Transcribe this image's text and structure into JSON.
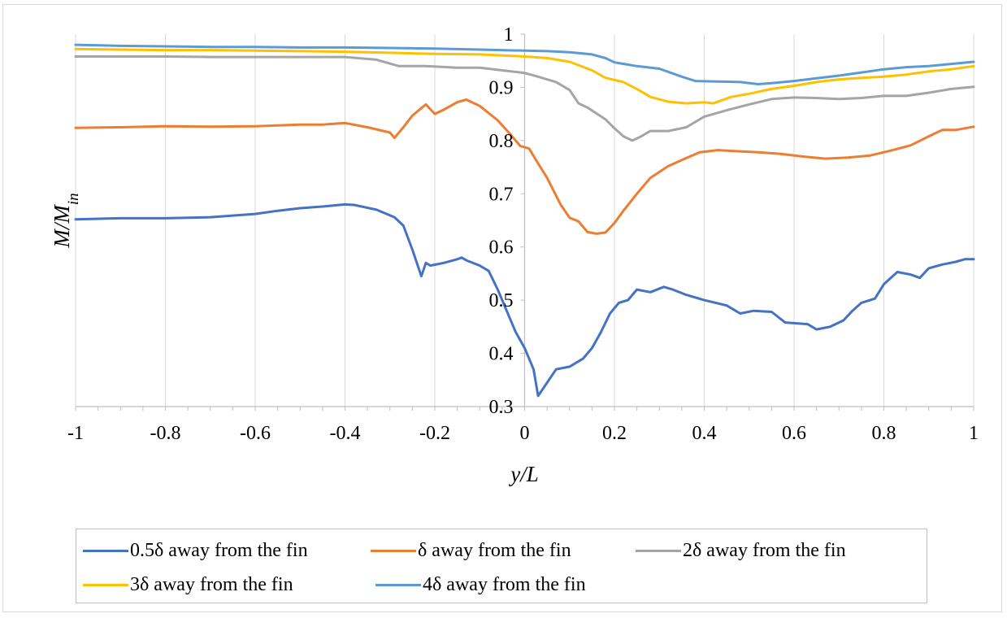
{
  "chart_data": {
    "type": "line",
    "xlabel": "y/L",
    "ylabel": "M/M",
    "ylabel_sub": "in",
    "xlim": [
      -1,
      1
    ],
    "ylim": [
      0.3,
      1
    ],
    "x_ticks": [
      -1,
      -0.8,
      -0.6,
      -0.4,
      -0.2,
      0,
      0.2,
      0.4,
      0.6,
      0.8,
      1
    ],
    "x_tick_labels": [
      "-1",
      "-0.8",
      "-0.6",
      "-0.4",
      "-0.2",
      "0",
      "0.2",
      "0.4",
      "0.6",
      "0.8",
      "1"
    ],
    "y_ticks": [
      0.3,
      0.4,
      0.5,
      0.6,
      0.7,
      0.8,
      0.9,
      1
    ],
    "y_tick_labels": [
      "0.3",
      "0.4",
      "0.5",
      "0.6",
      "0.7",
      "0.8",
      "0.9",
      "1"
    ],
    "grid": "vertical",
    "legend_position": "bottom",
    "series": [
      {
        "name": "0.5δ away from the fin",
        "color": "#4472C4",
        "points": [
          [
            -1,
            0.652
          ],
          [
            -0.9,
            0.654
          ],
          [
            -0.8,
            0.654
          ],
          [
            -0.7,
            0.656
          ],
          [
            -0.6,
            0.662
          ],
          [
            -0.55,
            0.668
          ],
          [
            -0.5,
            0.673
          ],
          [
            -0.45,
            0.676
          ],
          [
            -0.4,
            0.68
          ],
          [
            -0.38,
            0.679
          ],
          [
            -0.33,
            0.67
          ],
          [
            -0.29,
            0.656
          ],
          [
            -0.27,
            0.64
          ],
          [
            -0.25,
            0.595
          ],
          [
            -0.23,
            0.545
          ],
          [
            -0.22,
            0.57
          ],
          [
            -0.21,
            0.565
          ],
          [
            -0.18,
            0.57
          ],
          [
            -0.15,
            0.577
          ],
          [
            -0.14,
            0.58
          ],
          [
            -0.13,
            0.575
          ],
          [
            -0.1,
            0.565
          ],
          [
            -0.08,
            0.555
          ],
          [
            -0.06,
            0.52
          ],
          [
            -0.04,
            0.48
          ],
          [
            -0.02,
            0.44
          ],
          [
            0,
            0.41
          ],
          [
            0.02,
            0.37
          ],
          [
            0.03,
            0.32
          ],
          [
            0.05,
            0.345
          ],
          [
            0.07,
            0.37
          ],
          [
            0.1,
            0.375
          ],
          [
            0.13,
            0.39
          ],
          [
            0.15,
            0.41
          ],
          [
            0.17,
            0.44
          ],
          [
            0.19,
            0.475
          ],
          [
            0.21,
            0.495
          ],
          [
            0.23,
            0.5
          ],
          [
            0.25,
            0.52
          ],
          [
            0.28,
            0.515
          ],
          [
            0.31,
            0.525
          ],
          [
            0.33,
            0.52
          ],
          [
            0.36,
            0.51
          ],
          [
            0.4,
            0.5
          ],
          [
            0.45,
            0.49
          ],
          [
            0.48,
            0.475
          ],
          [
            0.51,
            0.48
          ],
          [
            0.55,
            0.478
          ],
          [
            0.58,
            0.458
          ],
          [
            0.63,
            0.455
          ],
          [
            0.65,
            0.445
          ],
          [
            0.68,
            0.45
          ],
          [
            0.71,
            0.462
          ],
          [
            0.73,
            0.48
          ],
          [
            0.75,
            0.495
          ],
          [
            0.78,
            0.503
          ],
          [
            0.8,
            0.53
          ],
          [
            0.83,
            0.553
          ],
          [
            0.86,
            0.548
          ],
          [
            0.88,
            0.542
          ],
          [
            0.9,
            0.56
          ],
          [
            0.93,
            0.567
          ],
          [
            0.96,
            0.572
          ],
          [
            0.98,
            0.577
          ],
          [
            1,
            0.577
          ]
        ]
      },
      {
        "name": "δ away from the fin",
        "color": "#ED7D31",
        "points": [
          [
            -1,
            0.824
          ],
          [
            -0.9,
            0.825
          ],
          [
            -0.8,
            0.827
          ],
          [
            -0.7,
            0.826
          ],
          [
            -0.6,
            0.827
          ],
          [
            -0.5,
            0.83
          ],
          [
            -0.45,
            0.83
          ],
          [
            -0.4,
            0.833
          ],
          [
            -0.35,
            0.825
          ],
          [
            -0.3,
            0.815
          ],
          [
            -0.29,
            0.805
          ],
          [
            -0.27,
            0.825
          ],
          [
            -0.25,
            0.847
          ],
          [
            -0.22,
            0.868
          ],
          [
            -0.2,
            0.85
          ],
          [
            -0.18,
            0.858
          ],
          [
            -0.15,
            0.872
          ],
          [
            -0.13,
            0.877
          ],
          [
            -0.1,
            0.865
          ],
          [
            -0.06,
            0.838
          ],
          [
            -0.03,
            0.81
          ],
          [
            -0.01,
            0.79
          ],
          [
            0.01,
            0.785
          ],
          [
            0.03,
            0.757
          ],
          [
            0.05,
            0.73
          ],
          [
            0.08,
            0.68
          ],
          [
            0.1,
            0.655
          ],
          [
            0.12,
            0.648
          ],
          [
            0.14,
            0.628
          ],
          [
            0.16,
            0.625
          ],
          [
            0.18,
            0.627
          ],
          [
            0.2,
            0.645
          ],
          [
            0.22,
            0.668
          ],
          [
            0.25,
            0.7
          ],
          [
            0.28,
            0.73
          ],
          [
            0.32,
            0.752
          ],
          [
            0.36,
            0.767
          ],
          [
            0.39,
            0.778
          ],
          [
            0.43,
            0.782
          ],
          [
            0.47,
            0.78
          ],
          [
            0.52,
            0.778
          ],
          [
            0.57,
            0.775
          ],
          [
            0.62,
            0.77
          ],
          [
            0.67,
            0.766
          ],
          [
            0.72,
            0.768
          ],
          [
            0.77,
            0.772
          ],
          [
            0.82,
            0.782
          ],
          [
            0.86,
            0.791
          ],
          [
            0.9,
            0.808
          ],
          [
            0.93,
            0.82
          ],
          [
            0.96,
            0.82
          ],
          [
            1,
            0.826
          ]
        ]
      },
      {
        "name": "2δ away from the fin",
        "color": "#A5A5A5",
        "points": [
          [
            -1,
            0.958
          ],
          [
            -0.9,
            0.958
          ],
          [
            -0.8,
            0.958
          ],
          [
            -0.7,
            0.957
          ],
          [
            -0.6,
            0.957
          ],
          [
            -0.5,
            0.957
          ],
          [
            -0.4,
            0.957
          ],
          [
            -0.33,
            0.952
          ],
          [
            -0.28,
            0.94
          ],
          [
            -0.22,
            0.94
          ],
          [
            -0.15,
            0.937
          ],
          [
            -0.1,
            0.937
          ],
          [
            -0.05,
            0.932
          ],
          [
            0,
            0.927
          ],
          [
            0.03,
            0.92
          ],
          [
            0.07,
            0.91
          ],
          [
            0.1,
            0.895
          ],
          [
            0.12,
            0.87
          ],
          [
            0.14,
            0.862
          ],
          [
            0.18,
            0.84
          ],
          [
            0.2,
            0.823
          ],
          [
            0.22,
            0.808
          ],
          [
            0.24,
            0.8
          ],
          [
            0.26,
            0.808
          ],
          [
            0.28,
            0.818
          ],
          [
            0.32,
            0.818
          ],
          [
            0.36,
            0.825
          ],
          [
            0.4,
            0.845
          ],
          [
            0.45,
            0.857
          ],
          [
            0.5,
            0.868
          ],
          [
            0.55,
            0.878
          ],
          [
            0.6,
            0.881
          ],
          [
            0.65,
            0.88
          ],
          [
            0.7,
            0.878
          ],
          [
            0.75,
            0.88
          ],
          [
            0.8,
            0.884
          ],
          [
            0.85,
            0.884
          ],
          [
            0.9,
            0.89
          ],
          [
            0.95,
            0.897
          ],
          [
            1,
            0.901
          ]
        ]
      },
      {
        "name": "3δ away from the fin",
        "color": "#FFC000",
        "points": [
          [
            -1,
            0.972
          ],
          [
            -0.9,
            0.971
          ],
          [
            -0.8,
            0.97
          ],
          [
            -0.7,
            0.97
          ],
          [
            -0.6,
            0.969
          ],
          [
            -0.5,
            0.968
          ],
          [
            -0.4,
            0.967
          ],
          [
            -0.3,
            0.965
          ],
          [
            -0.2,
            0.963
          ],
          [
            -0.1,
            0.962
          ],
          [
            0,
            0.958
          ],
          [
            0.05,
            0.955
          ],
          [
            0.1,
            0.948
          ],
          [
            0.15,
            0.932
          ],
          [
            0.18,
            0.918
          ],
          [
            0.22,
            0.91
          ],
          [
            0.25,
            0.897
          ],
          [
            0.28,
            0.882
          ],
          [
            0.32,
            0.873
          ],
          [
            0.36,
            0.87
          ],
          [
            0.4,
            0.872
          ],
          [
            0.42,
            0.87
          ],
          [
            0.46,
            0.882
          ],
          [
            0.5,
            0.888
          ],
          [
            0.55,
            0.897
          ],
          [
            0.6,
            0.903
          ],
          [
            0.65,
            0.91
          ],
          [
            0.7,
            0.915
          ],
          [
            0.75,
            0.918
          ],
          [
            0.8,
            0.92
          ],
          [
            0.85,
            0.924
          ],
          [
            0.9,
            0.93
          ],
          [
            0.95,
            0.934
          ],
          [
            1,
            0.94
          ]
        ]
      },
      {
        "name": "4δ away from the fin",
        "color": "#5B9BD5",
        "points": [
          [
            -1,
            0.98
          ],
          [
            -0.9,
            0.978
          ],
          [
            -0.8,
            0.977
          ],
          [
            -0.7,
            0.976
          ],
          [
            -0.6,
            0.976
          ],
          [
            -0.5,
            0.975
          ],
          [
            -0.4,
            0.975
          ],
          [
            -0.3,
            0.974
          ],
          [
            -0.2,
            0.973
          ],
          [
            -0.1,
            0.971
          ],
          [
            0,
            0.969
          ],
          [
            0.05,
            0.968
          ],
          [
            0.1,
            0.966
          ],
          [
            0.15,
            0.962
          ],
          [
            0.18,
            0.955
          ],
          [
            0.2,
            0.947
          ],
          [
            0.25,
            0.94
          ],
          [
            0.3,
            0.935
          ],
          [
            0.35,
            0.92
          ],
          [
            0.38,
            0.912
          ],
          [
            0.43,
            0.911
          ],
          [
            0.48,
            0.91
          ],
          [
            0.52,
            0.906
          ],
          [
            0.55,
            0.908
          ],
          [
            0.6,
            0.912
          ],
          [
            0.65,
            0.917
          ],
          [
            0.7,
            0.922
          ],
          [
            0.75,
            0.928
          ],
          [
            0.8,
            0.934
          ],
          [
            0.85,
            0.938
          ],
          [
            0.9,
            0.94
          ],
          [
            0.95,
            0.944
          ],
          [
            1,
            0.948
          ]
        ]
      }
    ]
  }
}
